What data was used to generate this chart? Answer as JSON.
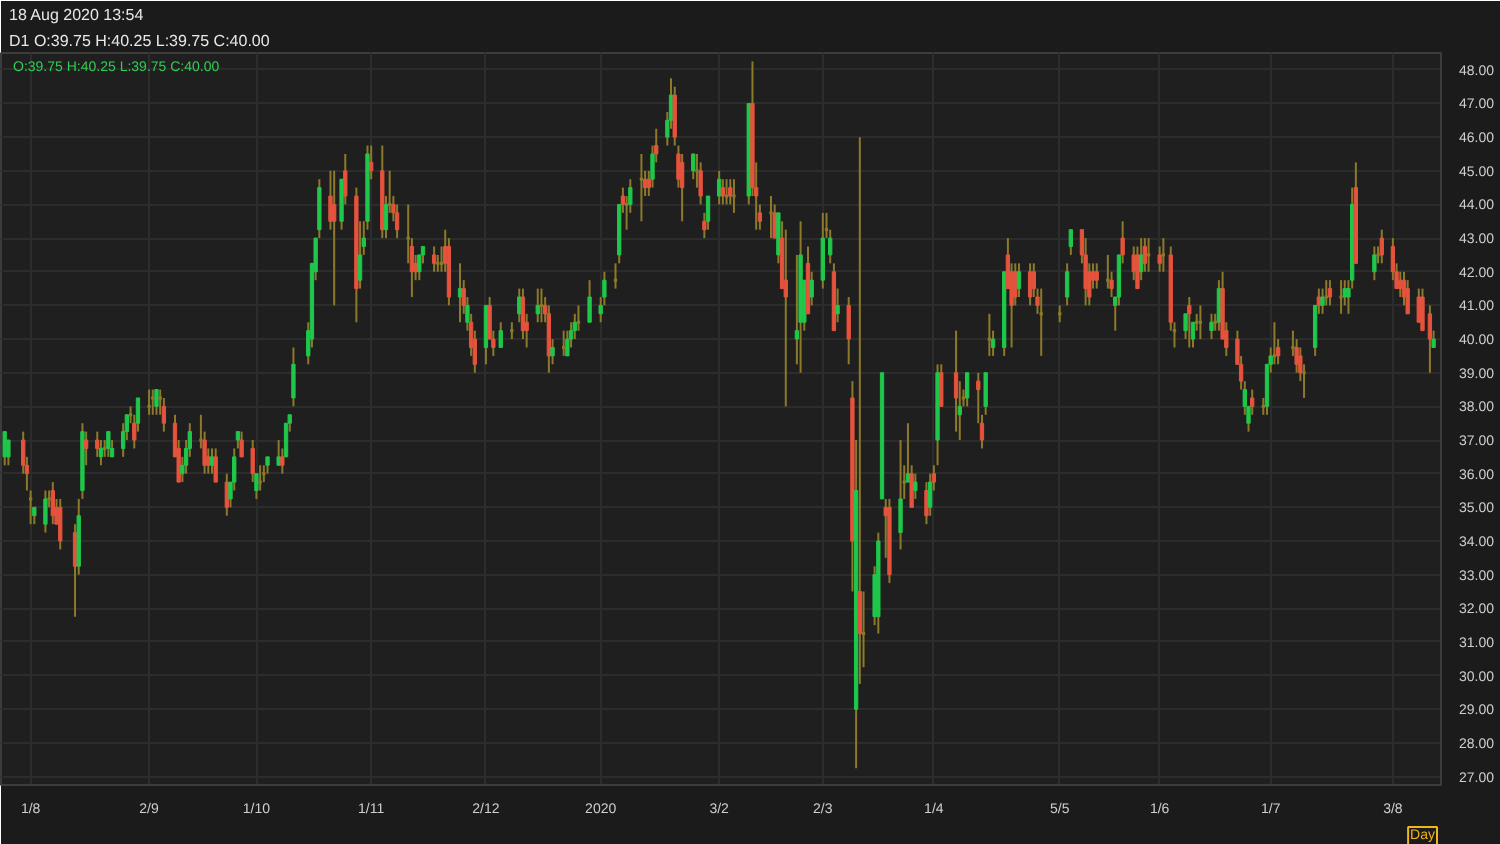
{
  "chart_data": {
    "type": "candlestick",
    "title": "18 Aug 2020 13:54",
    "subtitle": "D1 O:39.75 H:40.25 L:39.75 C:40.00",
    "xlabel": "Day",
    "annotations": [
      "O:39.75 H:40.25 L:39.75 C:40.00"
    ],
    "xlim": [
      "2019-07-24",
      "2020-08-16"
    ],
    "ylim": [
      26.75,
      48.5
    ],
    "xticks": [
      {
        "value": "2019-08-01",
        "label": "1/8"
      },
      {
        "value": "2019-09-02",
        "label": "2/9"
      },
      {
        "value": "2019-10-01",
        "label": "1/10"
      },
      {
        "value": "2019-11-01",
        "label": "1/11"
      },
      {
        "value": "2019-12-02",
        "label": "2/12"
      },
      {
        "value": "2020-01-02",
        "label": "2020"
      },
      {
        "value": "2020-02-03",
        "label": "3/2"
      },
      {
        "value": "2020-03-02",
        "label": "2/3"
      },
      {
        "value": "2020-04-01",
        "label": "1/4"
      },
      {
        "value": "2020-05-05",
        "label": "5/5"
      },
      {
        "value": "2020-06-01",
        "label": "1/6"
      },
      {
        "value": "2020-07-01",
        "label": "1/7"
      },
      {
        "value": "2020-08-03",
        "label": "3/8"
      }
    ],
    "yticks": [
      {
        "value": 27,
        "label": "27.00"
      },
      {
        "value": 28,
        "label": "28.00"
      },
      {
        "value": 29,
        "label": "29.00"
      },
      {
        "value": 30,
        "label": "30.00"
      },
      {
        "value": 31,
        "label": "31.00"
      },
      {
        "value": 32,
        "label": "32.00"
      },
      {
        "value": 33,
        "label": "33.00"
      },
      {
        "value": 34,
        "label": "34.00"
      },
      {
        "value": 35,
        "label": "35.00"
      },
      {
        "value": 36,
        "label": "36.00"
      },
      {
        "value": 37,
        "label": "37.00"
      },
      {
        "value": 38,
        "label": "38.00"
      },
      {
        "value": 39,
        "label": "39.00"
      },
      {
        "value": 40,
        "label": "40.00"
      },
      {
        "value": 41,
        "label": "41.00"
      },
      {
        "value": 42,
        "label": "42.00"
      },
      {
        "value": 43,
        "label": "43.00"
      },
      {
        "value": 44,
        "label": "44.00"
      },
      {
        "value": 45,
        "label": "45.00"
      },
      {
        "value": 46,
        "label": "46.00"
      },
      {
        "value": 47,
        "label": "47.00"
      },
      {
        "value": 48,
        "label": "48.00"
      }
    ],
    "grid": true,
    "color": "#8c7a2a",
    "x": [
      "2019-07-25",
      "2019-07-26",
      "2019-07-30",
      "2019-07-31",
      "2019-08-01",
      "2019-08-02",
      "2019-08-05",
      "2019-08-06",
      "2019-08-07",
      "2019-08-08",
      "2019-08-09",
      "2019-08-13",
      "2019-08-14",
      "2019-08-15",
      "2019-08-16",
      "2019-08-19",
      "2019-08-20",
      "2019-08-21",
      "2019-08-22",
      "2019-08-23",
      "2019-08-26",
      "2019-08-27",
      "2019-08-28",
      "2019-08-29",
      "2019-08-30",
      "2019-09-02",
      "2019-09-03",
      "2019-09-04",
      "2019-09-05",
      "2019-09-06",
      "2019-09-09",
      "2019-09-10",
      "2019-09-11",
      "2019-09-12",
      "2019-09-13",
      "2019-09-16",
      "2019-09-17",
      "2019-09-18",
      "2019-09-19",
      "2019-09-20",
      "2019-09-23",
      "2019-09-24",
      "2019-09-25",
      "2019-09-26",
      "2019-09-27",
      "2019-09-30",
      "2019-10-01",
      "2019-10-02",
      "2019-10-03",
      "2019-10-04",
      "2019-10-07",
      "2019-10-08",
      "2019-10-09",
      "2019-10-10",
      "2019-10-11",
      "2019-10-15",
      "2019-10-16",
      "2019-10-17",
      "2019-10-18",
      "2019-10-21",
      "2019-10-22",
      "2019-10-24",
      "2019-10-25",
      "2019-10-28",
      "2019-10-29",
      "2019-10-30",
      "2019-10-31",
      "2019-11-01",
      "2019-11-04",
      "2019-11-05",
      "2019-11-06",
      "2019-11-07",
      "2019-11-08",
      "2019-11-11",
      "2019-11-12",
      "2019-11-13",
      "2019-11-14",
      "2019-11-15",
      "2019-11-18",
      "2019-11-19",
      "2019-11-20",
      "2019-11-21",
      "2019-11-22",
      "2019-11-25",
      "2019-11-26",
      "2019-11-27",
      "2019-11-28",
      "2019-11-29",
      "2019-12-02",
      "2019-12-03",
      "2019-12-04",
      "2019-12-06",
      "2019-12-09",
      "2019-12-11",
      "2019-12-12",
      "2019-12-13",
      "2019-12-16",
      "2019-12-17",
      "2019-12-18",
      "2019-12-19",
      "2019-12-20",
      "2019-12-23",
      "2019-12-24",
      "2019-12-25",
      "2019-12-26",
      "2019-12-27",
      "2019-12-30",
      "2020-01-02",
      "2020-01-03",
      "2020-01-06",
      "2020-01-07",
      "2020-01-08",
      "2020-01-09",
      "2020-01-10",
      "2020-01-13",
      "2020-01-14",
      "2020-01-15",
      "2020-01-16",
      "2020-01-17",
      "2020-01-20",
      "2020-01-21",
      "2020-01-22",
      "2020-01-23",
      "2020-01-24",
      "2020-01-27",
      "2020-01-28",
      "2020-01-29",
      "2020-01-30",
      "2020-01-31",
      "2020-02-03",
      "2020-02-04",
      "2020-02-05",
      "2020-02-06",
      "2020-02-07",
      "2020-02-11",
      "2020-02-12",
      "2020-02-13",
      "2020-02-14",
      "2020-02-17",
      "2020-02-18",
      "2020-02-19",
      "2020-02-20",
      "2020-02-21",
      "2020-02-24",
      "2020-02-25",
      "2020-02-26",
      "2020-02-27",
      "2020-02-28",
      "2020-03-02",
      "2020-03-03",
      "2020-03-04",
      "2020-03-05",
      "2020-03-06",
      "2020-03-09",
      "2020-03-10",
      "2020-03-11",
      "2020-03-12",
      "2020-03-13",
      "2020-03-16",
      "2020-03-17",
      "2020-03-18",
      "2020-03-19",
      "2020-03-20",
      "2020-03-23",
      "2020-03-24",
      "2020-03-25",
      "2020-03-26",
      "2020-03-27",
      "2020-03-30",
      "2020-03-31",
      "2020-04-01",
      "2020-04-02",
      "2020-04-03",
      "2020-04-07",
      "2020-04-08",
      "2020-04-09",
      "2020-04-10",
      "2020-04-13",
      "2020-04-14",
      "2020-04-15",
      "2020-04-16",
      "2020-04-17",
      "2020-04-20",
      "2020-04-21",
      "2020-04-22",
      "2020-04-23",
      "2020-04-24",
      "2020-04-27",
      "2020-04-28",
      "2020-04-29",
      "2020-04-30",
      "2020-05-05",
      "2020-05-07",
      "2020-05-08",
      "2020-05-11",
      "2020-05-12",
      "2020-05-13",
      "2020-05-14",
      "2020-05-15",
      "2020-05-18",
      "2020-05-19",
      "2020-05-20",
      "2020-05-21",
      "2020-05-22",
      "2020-05-25",
      "2020-05-26",
      "2020-05-27",
      "2020-05-28",
      "2020-05-29",
      "2020-06-01",
      "2020-06-02",
      "2020-06-04",
      "2020-06-05",
      "2020-06-08",
      "2020-06-09",
      "2020-06-10",
      "2020-06-11",
      "2020-06-12",
      "2020-06-15",
      "2020-06-16",
      "2020-06-17",
      "2020-06-18",
      "2020-06-19",
      "2020-06-22",
      "2020-06-23",
      "2020-06-24",
      "2020-06-25",
      "2020-06-26",
      "2020-06-29",
      "2020-06-30",
      "2020-07-01",
      "2020-07-02",
      "2020-07-03",
      "2020-07-07",
      "2020-07-08",
      "2020-07-09",
      "2020-07-10",
      "2020-07-13",
      "2020-07-14",
      "2020-07-15",
      "2020-07-16",
      "2020-07-17",
      "2020-07-20",
      "2020-07-21",
      "2020-07-22",
      "2020-07-23",
      "2020-07-24",
      "2020-07-29",
      "2020-07-30",
      "2020-07-31",
      "2020-08-03",
      "2020-08-04",
      "2020-08-05",
      "2020-08-06",
      "2020-08-07",
      "2020-08-10",
      "2020-08-11",
      "2020-08-13",
      "2020-08-14"
    ],
    "ohlc": [
      [
        36.5,
        37.25,
        36.25,
        37.25
      ],
      [
        36.5,
        37.0,
        36.25,
        37.0
      ],
      [
        37.0,
        37.25,
        36.0,
        36.25
      ],
      [
        36.25,
        36.5,
        35.5,
        36.0
      ],
      [
        35.25,
        35.5,
        34.5,
        35.25
      ],
      [
        34.75,
        35.0,
        34.5,
        35.0
      ],
      [
        34.5,
        35.5,
        34.25,
        35.25
      ],
      [
        35.25,
        35.5,
        35.0,
        35.25
      ],
      [
        35.5,
        35.75,
        34.5,
        34.75
      ],
      [
        35.0,
        35.25,
        34.5,
        34.5
      ],
      [
        35.0,
        35.25,
        33.75,
        34.0
      ],
      [
        34.25,
        34.5,
        31.75,
        33.25
      ],
      [
        33.25,
        35.25,
        33.0,
        34.75
      ],
      [
        35.5,
        37.5,
        35.25,
        37.25
      ],
      [
        37.0,
        37.25,
        36.25,
        36.75
      ],
      [
        37.0,
        37.25,
        36.5,
        36.75
      ],
      [
        36.5,
        37.0,
        36.25,
        36.75
      ],
      [
        36.75,
        37.0,
        36.5,
        36.75
      ],
      [
        36.75,
        37.25,
        36.5,
        37.25
      ],
      [
        36.5,
        37.0,
        36.5,
        36.75
      ],
      [
        36.75,
        37.5,
        36.5,
        37.25
      ],
      [
        37.25,
        37.75,
        37.0,
        37.75
      ],
      [
        37.75,
        38.0,
        37.5,
        37.75
      ],
      [
        37.5,
        37.75,
        36.75,
        37.0
      ],
      [
        37.5,
        38.25,
        37.25,
        38.25
      ],
      [
        38.0,
        38.5,
        37.75,
        38.0
      ],
      [
        38.25,
        38.5,
        37.75,
        38.25
      ],
      [
        38.0,
        38.5,
        37.75,
        38.5
      ],
      [
        38.25,
        38.5,
        37.75,
        38.25
      ],
      [
        38.0,
        38.25,
        37.25,
        37.5
      ],
      [
        37.5,
        37.75,
        36.5,
        36.5
      ],
      [
        36.75,
        37.0,
        35.75,
        35.75
      ],
      [
        36.0,
        36.5,
        35.75,
        36.25
      ],
      [
        36.25,
        37.0,
        36.0,
        36.75
      ],
      [
        36.75,
        37.5,
        36.5,
        37.25
      ],
      [
        37.0,
        37.75,
        36.75,
        37.0
      ],
      [
        37.0,
        37.25,
        36.0,
        36.25
      ],
      [
        36.5,
        36.75,
        36.0,
        36.25
      ],
      [
        36.25,
        36.75,
        36.0,
        36.5
      ],
      [
        36.5,
        36.75,
        35.75,
        35.75
      ],
      [
        35.75,
        36.0,
        34.75,
        35.0
      ],
      [
        35.25,
        35.75,
        35.0,
        35.75
      ],
      [
        35.75,
        36.75,
        35.5,
        36.5
      ],
      [
        37.0,
        37.25,
        36.75,
        37.25
      ],
      [
        37.0,
        37.25,
        36.5,
        36.5
      ],
      [
        36.75,
        37.0,
        35.75,
        36.0
      ],
      [
        35.5,
        36.0,
        35.25,
        36.0
      ],
      [
        35.75,
        36.25,
        35.5,
        35.75
      ],
      [
        36.0,
        36.25,
        35.75,
        36.0
      ],
      [
        36.25,
        36.5,
        36.0,
        36.5
      ],
      [
        36.25,
        37.0,
        36.25,
        36.5
      ],
      [
        36.5,
        36.75,
        36.0,
        36.25
      ],
      [
        36.5,
        37.5,
        36.5,
        37.5
      ],
      [
        37.5,
        37.75,
        37.25,
        37.75
      ],
      [
        38.25,
        39.75,
        38.0,
        39.25
      ],
      [
        39.5,
        40.5,
        39.25,
        40.25
      ],
      [
        40.0,
        42.25,
        39.75,
        42.25
      ],
      [
        42.0,
        43.0,
        41.75,
        43.0
      ],
      [
        43.25,
        44.75,
        43.0,
        44.5
      ],
      [
        44.25,
        45.0,
        43.25,
        43.5
      ],
      [
        44.0,
        45.0,
        41.0,
        43.5
      ],
      [
        43.5,
        44.75,
        43.25,
        44.75
      ],
      [
        45.0,
        45.5,
        44.0,
        44.25
      ],
      [
        44.25,
        44.5,
        40.5,
        41.5
      ],
      [
        41.75,
        43.5,
        41.5,
        42.5
      ],
      [
        42.75,
        43.5,
        42.5,
        43.0
      ],
      [
        43.5,
        45.75,
        43.25,
        45.5
      ],
      [
        45.25,
        45.75,
        44.75,
        45.0
      ],
      [
        45.0,
        45.75,
        43.0,
        43.25
      ],
      [
        43.25,
        44.25,
        43.0,
        44.0
      ],
      [
        44.0,
        45.0,
        43.75,
        44.0
      ],
      [
        44.0,
        44.25,
        43.5,
        43.75
      ],
      [
        43.75,
        44.0,
        43.0,
        43.25
      ],
      [
        43.0,
        44.0,
        42.25,
        43.0
      ],
      [
        42.75,
        43.0,
        41.25,
        42.0
      ],
      [
        42.25,
        42.5,
        41.75,
        42.0
      ],
      [
        42.0,
        42.5,
        41.75,
        42.5
      ],
      [
        42.5,
        42.75,
        42.25,
        42.75
      ],
      [
        42.5,
        42.75,
        42.0,
        42.25
      ],
      [
        42.25,
        42.5,
        42.0,
        42.25
      ],
      [
        42.25,
        42.75,
        42.0,
        42.25
      ],
      [
        42.75,
        43.25,
        42.0,
        42.25
      ],
      [
        42.75,
        43.0,
        41.0,
        41.25
      ],
      [
        41.25,
        42.25,
        40.5,
        41.5
      ],
      [
        41.5,
        41.75,
        40.75,
        41.0
      ],
      [
        40.5,
        41.25,
        40.25,
        41.0
      ],
      [
        40.5,
        40.75,
        39.5,
        39.75
      ],
      [
        40.0,
        40.25,
        39.0,
        39.25
      ],
      [
        39.75,
        41.0,
        39.25,
        41.0
      ],
      [
        41.0,
        41.25,
        40.0,
        40.0
      ],
      [
        40.0,
        40.25,
        39.5,
        39.75
      ],
      [
        39.75,
        40.5,
        39.75,
        40.25
      ],
      [
        40.25,
        40.5,
        40.0,
        40.25
      ],
      [
        40.75,
        41.5,
        40.5,
        41.25
      ],
      [
        41.25,
        41.5,
        40.0,
        40.25
      ],
      [
        40.5,
        40.75,
        39.75,
        40.25
      ],
      [
        40.75,
        41.5,
        40.5,
        41.0
      ],
      [
        41.0,
        41.5,
        40.5,
        41.0
      ],
      [
        41.0,
        41.25,
        40.5,
        40.75
      ],
      [
        40.75,
        41.0,
        39.0,
        39.5
      ],
      [
        39.5,
        40.0,
        39.25,
        39.75
      ],
      [
        39.75,
        40.25,
        39.5,
        39.75
      ],
      [
        39.5,
        40.25,
        39.5,
        40.0
      ],
      [
        40.0,
        40.5,
        39.75,
        40.25
      ],
      [
        40.25,
        40.75,
        40.0,
        40.5
      ],
      [
        40.5,
        41.0,
        40.25,
        40.5
      ],
      [
        40.5,
        41.75,
        40.5,
        41.25
      ],
      [
        40.75,
        41.25,
        40.5,
        41.0
      ],
      [
        41.25,
        42.0,
        41.0,
        41.75
      ],
      [
        41.75,
        42.25,
        41.5,
        41.75
      ],
      [
        42.5,
        44.0,
        42.25,
        44.0
      ],
      [
        44.25,
        44.5,
        43.75,
        44.0
      ],
      [
        44.0,
        44.25,
        43.25,
        44.0
      ],
      [
        44.0,
        44.75,
        43.75,
        44.5
      ],
      [
        44.75,
        45.5,
        43.5,
        44.75
      ],
      [
        44.75,
        45.0,
        44.25,
        44.5
      ],
      [
        44.75,
        45.0,
        44.25,
        44.5
      ],
      [
        44.75,
        45.75,
        44.5,
        45.5
      ],
      [
        45.75,
        46.25,
        45.25,
        45.5
      ],
      [
        46.0,
        46.75,
        45.75,
        46.5
      ],
      [
        46.5,
        47.75,
        46.25,
        47.25
      ],
      [
        47.25,
        47.5,
        45.75,
        46.0
      ],
      [
        45.5,
        45.75,
        44.5,
        44.75
      ],
      [
        45.25,
        45.5,
        43.5,
        44.5
      ],
      [
        45.0,
        45.5,
        44.75,
        45.5
      ],
      [
        45.0,
        45.5,
        44.5,
        45.0
      ],
      [
        45.0,
        45.25,
        44.0,
        44.25
      ],
      [
        43.5,
        43.75,
        43.0,
        43.25
      ],
      [
        43.5,
        44.25,
        43.25,
        44.25
      ],
      [
        44.25,
        45.0,
        44.0,
        44.75
      ],
      [
        44.5,
        44.75,
        44.0,
        44.25
      ],
      [
        44.25,
        44.75,
        44.0,
        44.25
      ],
      [
        44.5,
        44.75,
        44.0,
        44.25
      ],
      [
        44.25,
        44.75,
        43.75,
        44.25
      ],
      [
        44.25,
        47.0,
        44.0,
        47.0
      ],
      [
        47.0,
        48.25,
        44.25,
        44.5
      ],
      [
        44.5,
        45.25,
        43.25,
        44.25
      ],
      [
        43.75,
        44.0,
        43.25,
        43.5
      ],
      [
        43.75,
        44.25,
        43.0,
        43.75
      ],
      [
        43.75,
        44.0,
        43.0,
        43.0
      ],
      [
        42.5,
        43.75,
        42.25,
        43.75
      ],
      [
        43.0,
        43.5,
        41.5,
        41.5
      ],
      [
        41.75,
        43.25,
        38.0,
        41.25
      ],
      [
        40.0,
        42.5,
        39.25,
        40.25
      ],
      [
        40.5,
        43.5,
        39.0,
        42.5
      ],
      [
        40.5,
        41.75,
        40.25,
        41.75
      ],
      [
        42.25,
        42.75,
        40.75,
        40.75
      ],
      [
        41.25,
        42.0,
        41.0,
        41.75
      ],
      [
        41.75,
        43.75,
        41.5,
        43.0
      ],
      [
        43.25,
        43.75,
        43.0,
        43.25
      ],
      [
        42.5,
        43.25,
        42.25,
        43.0
      ],
      [
        42.0,
        42.25,
        40.25,
        40.25
      ],
      [
        40.75,
        41.5,
        40.5,
        41.0
      ],
      [
        41.0,
        41.25,
        39.25,
        40.0
      ],
      [
        38.25,
        38.75,
        32.5,
        34.0
      ],
      [
        29.0,
        37.0,
        27.25,
        35.5
      ],
      [
        32.5,
        46.0,
        29.75,
        31.25
      ],
      [
        31.25,
        32.5,
        30.25,
        31.25
      ],
      [
        31.75,
        33.25,
        31.5,
        33.0
      ],
      [
        31.75,
        34.25,
        31.25,
        34.0
      ],
      [
        35.25,
        39.0,
        35.25,
        39.0
      ],
      [
        35.0,
        35.25,
        33.5,
        34.75
      ],
      [
        35.0,
        35.25,
        32.75,
        33.0
      ],
      [
        34.25,
        37.0,
        33.75,
        35.25
      ],
      [
        35.75,
        36.25,
        35.25,
        35.75
      ],
      [
        35.75,
        37.5,
        35.75,
        36.0
      ],
      [
        36.0,
        36.25,
        35.0,
        35.0
      ],
      [
        35.5,
        36.0,
        35.25,
        35.75
      ],
      [
        35.5,
        35.75,
        34.5,
        34.75
      ],
      [
        35.0,
        36.0,
        34.75,
        35.75
      ],
      [
        36.0,
        36.25,
        35.5,
        35.75
      ],
      [
        37.0,
        39.25,
        36.25,
        39.0
      ],
      [
        39.0,
        39.25,
        38.0,
        38.0
      ],
      [
        39.0,
        40.25,
        37.25,
        38.25
      ],
      [
        37.75,
        38.75,
        37.0,
        38.0
      ],
      [
        38.25,
        38.5,
        38.0,
        38.25
      ],
      [
        38.25,
        39.0,
        38.0,
        39.0
      ],
      [
        38.75,
        39.0,
        37.5,
        38.5
      ],
      [
        37.5,
        37.75,
        36.75,
        37.0
      ],
      [
        38.0,
        39.0,
        37.75,
        39.0
      ],
      [
        40.0,
        40.75,
        39.5,
        40.0
      ],
      [
        39.75,
        40.25,
        39.5,
        40.0
      ],
      [
        39.75,
        42.0,
        39.5,
        42.0
      ],
      [
        42.5,
        43.0,
        41.5,
        41.5
      ],
      [
        42.0,
        42.25,
        39.75,
        41.0
      ],
      [
        42.0,
        42.25,
        41.0,
        41.25
      ],
      [
        41.5,
        42.25,
        41.25,
        42.0
      ],
      [
        42.0,
        42.25,
        41.0,
        41.25
      ],
      [
        42.0,
        42.25,
        41.25,
        41.5
      ],
      [
        41.25,
        41.5,
        40.75,
        41.0
      ],
      [
        40.75,
        41.5,
        39.5,
        40.75
      ],
      [
        40.75,
        41.0,
        40.5,
        40.75
      ],
      [
        41.25,
        42.25,
        41.0,
        42.0
      ],
      [
        42.75,
        43.25,
        42.5,
        43.25
      ],
      [
        43.25,
        43.25,
        42.25,
        42.5
      ],
      [
        42.5,
        43.0,
        41.0,
        41.5
      ],
      [
        42.0,
        42.25,
        41.0,
        41.25
      ],
      [
        42.0,
        42.25,
        41.5,
        41.75
      ],
      [
        42.0,
        42.25,
        41.5,
        41.75
      ],
      [
        41.75,
        42.5,
        41.5,
        41.75
      ],
      [
        41.75,
        42.0,
        41.25,
        41.5
      ],
      [
        41.0,
        41.25,
        40.25,
        41.25
      ],
      [
        41.25,
        42.5,
        41.0,
        42.5
      ],
      [
        43.0,
        43.5,
        42.25,
        42.5
      ],
      [
        42.5,
        42.75,
        41.75,
        42.0
      ],
      [
        42.5,
        42.75,
        41.5,
        41.5
      ],
      [
        42.0,
        43.0,
        41.75,
        42.5
      ],
      [
        42.75,
        43.0,
        42.0,
        42.25
      ],
      [
        42.5,
        43.0,
        42.0,
        42.5
      ],
      [
        42.5,
        42.75,
        42.0,
        42.25
      ],
      [
        42.5,
        43.0,
        42.0,
        42.5
      ],
      [
        42.5,
        42.75,
        40.25,
        40.5
      ],
      [
        40.25,
        40.5,
        39.75,
        40.25
      ],
      [
        40.25,
        40.75,
        40.0,
        40.75
      ],
      [
        41.0,
        41.25,
        39.75,
        40.75
      ],
      [
        40.0,
        40.5,
        39.75,
        40.5
      ],
      [
        40.5,
        40.75,
        40.25,
        40.5
      ],
      [
        40.5,
        41.0,
        40.0,
        40.5
      ],
      [
        40.25,
        40.75,
        40.0,
        40.5
      ],
      [
        40.5,
        40.75,
        40.25,
        40.5
      ],
      [
        40.5,
        41.75,
        40.25,
        41.5
      ],
      [
        41.5,
        42.0,
        40.0,
        40.0
      ],
      [
        40.25,
        40.5,
        39.5,
        39.75
      ],
      [
        40.0,
        40.25,
        39.25,
        39.25
      ],
      [
        39.25,
        39.5,
        38.5,
        38.75
      ],
      [
        38.0,
        38.75,
        37.75,
        38.5
      ],
      [
        37.5,
        38.0,
        37.25,
        38.0
      ],
      [
        38.25,
        38.5,
        37.75,
        38.0
      ],
      [
        38.0,
        38.25,
        37.75,
        38.0
      ],
      [
        38.0,
        39.25,
        37.75,
        39.25
      ],
      [
        39.25,
        39.75,
        39.0,
        39.5
      ],
      [
        39.5,
        40.5,
        39.25,
        39.5
      ],
      [
        39.75,
        40.0,
        39.25,
        39.5
      ],
      [
        39.75,
        40.25,
        39.5,
        39.75
      ],
      [
        39.75,
        40.0,
        39.0,
        39.25
      ],
      [
        39.5,
        39.75,
        38.75,
        39.0
      ],
      [
        39.0,
        39.25,
        38.25,
        39.0
      ],
      [
        39.75,
        41.0,
        39.5,
        41.0
      ],
      [
        41.25,
        41.5,
        40.75,
        41.0
      ],
      [
        41.0,
        41.5,
        40.75,
        41.25
      ],
      [
        41.25,
        41.75,
        41.0,
        41.25
      ],
      [
        41.5,
        41.75,
        41.0,
        41.25
      ],
      [
        41.25,
        41.75,
        40.75,
        41.25
      ],
      [
        41.25,
        41.75,
        41.0,
        41.5
      ],
      [
        41.25,
        41.75,
        40.75,
        41.5
      ],
      [
        41.75,
        44.5,
        41.5,
        44.0
      ],
      [
        44.5,
        45.25,
        42.25,
        42.25
      ],
      [
        42.0,
        42.75,
        41.75,
        42.5
      ],
      [
        42.5,
        42.75,
        42.25,
        42.5
      ],
      [
        43.0,
        43.25,
        42.25,
        42.5
      ],
      [
        42.75,
        43.0,
        41.75,
        42.0
      ],
      [
        42.0,
        42.25,
        41.5,
        41.5
      ],
      [
        41.75,
        42.0,
        41.25,
        41.5
      ],
      [
        41.75,
        42.0,
        41.0,
        41.25
      ],
      [
        41.5,
        41.75,
        40.75,
        40.75
      ],
      [
        41.25,
        41.5,
        40.5,
        40.5
      ],
      [
        41.25,
        41.5,
        40.25,
        40.25
      ],
      [
        40.75,
        41.0,
        39.0,
        40.0
      ],
      [
        39.75,
        40.25,
        39.75,
        40.0
      ]
    ],
    "colors": [
      "#1fc74a",
      "#1fc74a",
      "#e5533d",
      "#e5533d",
      "#8c7a2a",
      "#1fc74a",
      "#1fc74a",
      "#8c7a2a",
      "#e5533d",
      "#e5533d",
      "#e5533d",
      "#e5533d",
      "#1fc74a",
      "#1fc74a",
      "#e5533d",
      "#e5533d",
      "#1fc74a",
      "#8c7a2a",
      "#1fc74a",
      "#1fc74a",
      "#1fc74a",
      "#1fc74a",
      "#8c7a2a",
      "#e5533d",
      "#1fc74a",
      "#8c7a2a",
      "#8c7a2a",
      "#1fc74a",
      "#8c7a2a",
      "#e5533d",
      "#e5533d",
      "#e5533d",
      "#1fc74a",
      "#1fc74a",
      "#1fc74a",
      "#8c7a2a",
      "#e5533d",
      "#e5533d",
      "#1fc74a",
      "#e5533d",
      "#e5533d",
      "#1fc74a",
      "#1fc74a",
      "#1fc74a",
      "#e5533d",
      "#e5533d",
      "#1fc74a",
      "#8c7a2a",
      "#8c7a2a",
      "#1fc74a",
      "#1fc74a",
      "#e5533d",
      "#1fc74a",
      "#1fc74a",
      "#1fc74a",
      "#1fc74a",
      "#1fc74a",
      "#1fc74a",
      "#1fc74a",
      "#e5533d",
      "#e5533d",
      "#1fc74a",
      "#e5533d",
      "#e5533d",
      "#1fc74a",
      "#1fc74a",
      "#1fc74a",
      "#e5533d",
      "#e5533d",
      "#1fc74a",
      "#8c7a2a",
      "#e5533d",
      "#e5533d",
      "#8c7a2a",
      "#e5533d",
      "#e5533d",
      "#1fc74a",
      "#1fc74a",
      "#e5533d",
      "#8c7a2a",
      "#8c7a2a",
      "#e5533d",
      "#e5533d",
      "#1fc74a",
      "#e5533d",
      "#1fc74a",
      "#e5533d",
      "#e5533d",
      "#1fc74a",
      "#e5533d",
      "#e5533d",
      "#1fc74a",
      "#8c7a2a",
      "#1fc74a",
      "#e5533d",
      "#e5533d",
      "#1fc74a",
      "#8c7a2a",
      "#e5533d",
      "#e5533d",
      "#1fc74a",
      "#8c7a2a",
      "#1fc74a",
      "#1fc74a",
      "#1fc74a",
      "#8c7a2a",
      "#1fc74a",
      "#1fc74a",
      "#1fc74a",
      "#8c7a2a",
      "#1fc74a",
      "#e5533d",
      "#8c7a2a",
      "#1fc74a",
      "#8c7a2a",
      "#e5533d",
      "#e5533d",
      "#1fc74a",
      "#e5533d",
      "#1fc74a",
      "#1fc74a",
      "#e5533d",
      "#e5533d",
      "#e5533d",
      "#1fc74a",
      "#8c7a2a",
      "#e5533d",
      "#e5533d",
      "#1fc74a",
      "#1fc74a",
      "#e5533d",
      "#8c7a2a",
      "#e5533d",
      "#8c7a2a",
      "#1fc74a",
      "#e5533d",
      "#e5533d",
      "#e5533d",
      "#8c7a2a",
      "#e5533d",
      "#1fc74a",
      "#e5533d",
      "#e5533d",
      "#1fc74a",
      "#1fc74a",
      "#1fc74a",
      "#e5533d",
      "#1fc74a",
      "#1fc74a",
      "#8c7a2a",
      "#1fc74a",
      "#e5533d",
      "#1fc74a",
      "#e5533d",
      "#e5533d",
      "#1fc74a",
      "#e5533d",
      "#8c7a2a",
      "#1fc74a",
      "#1fc74a",
      "#1fc74a",
      "#e5533d",
      "#e5533d",
      "#1fc74a",
      "#8c7a2a",
      "#1fc74a",
      "#e5533d",
      "#1fc74a",
      "#e5533d",
      "#1fc74a",
      "#e5533d",
      "#1fc74a",
      "#e5533d",
      "#e5533d",
      "#1fc74a",
      "#8c7a2a",
      "#1fc74a",
      "#e5533d",
      "#e5533d",
      "#1fc74a",
      "#8c7a2a",
      "#1fc74a",
      "#1fc74a",
      "#e5533d",
      "#e5533d",
      "#e5533d",
      "#1fc74a",
      "#e5533d",
      "#e5533d",
      "#e5533d",
      "#8c7a2a",
      "#8c7a2a",
      "#1fc74a",
      "#1fc74a",
      "#e5533d",
      "#e5533d",
      "#e5533d",
      "#e5533d",
      "#e5533d",
      "#8c7a2a",
      "#e5533d",
      "#1fc74a",
      "#1fc74a",
      "#e5533d",
      "#e5533d",
      "#e5533d",
      "#1fc74a",
      "#e5533d",
      "#8c7a2a",
      "#e5533d",
      "#8c7a2a",
      "#e5533d",
      "#8c7a2a",
      "#1fc74a",
      "#e5533d",
      "#1fc74a",
      "#8c7a2a",
      "#8c7a2a",
      "#1fc74a",
      "#8c7a2a",
      "#1fc74a",
      "#e5533d",
      "#e5533d",
      "#e5533d",
      "#e5533d",
      "#1fc74a",
      "#1fc74a",
      "#e5533d",
      "#8c7a2a",
      "#1fc74a",
      "#1fc74a",
      "#8c7a2a",
      "#e5533d",
      "#8c7a2a",
      "#e5533d",
      "#e5533d",
      "#8c7a2a",
      "#1fc74a",
      "#e5533d",
      "#1fc74a",
      "#8c7a2a",
      "#e5533d",
      "#8c7a2a",
      "#1fc74a",
      "#1fc74a",
      "#1fc74a",
      "#e5533d",
      "#1fc74a",
      "#8c7a2a",
      "#e5533d",
      "#e5533d",
      "#e5533d",
      "#e5533d",
      "#e5533d",
      "#e5533d",
      "#e5533d",
      "#e5533d",
      "#e5533d",
      "#1fc74a"
    ]
  }
}
